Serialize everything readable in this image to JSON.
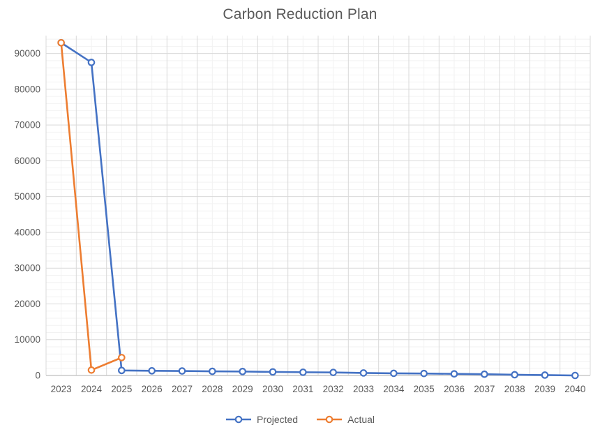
{
  "chart_data": {
    "type": "line",
    "title": "Carbon Reduction Plan",
    "categories": [
      "2023",
      "2024",
      "2025",
      "2026",
      "2027",
      "2028",
      "2029",
      "2030",
      "2031",
      "2032",
      "2033",
      "2034",
      "2035",
      "2036",
      "2037",
      "2038",
      "2039",
      "2040"
    ],
    "series": [
      {
        "name": "Projected",
        "color": "#4472C4",
        "values": [
          93000,
          87500,
          1400,
          1300,
          1250,
          1150,
          1100,
          1000,
          900,
          850,
          700,
          600,
          550,
          450,
          350,
          200,
          100,
          0
        ]
      },
      {
        "name": "Actual",
        "color": "#ED7D31",
        "values": [
          93000,
          1500,
          5000
        ]
      }
    ],
    "xlabel": "",
    "ylabel": "",
    "ylim": [
      0,
      95000
    ],
    "ytick_step": 10000,
    "ytick_labels": [
      "0",
      "10000",
      "20000",
      "30000",
      "40000",
      "50000",
      "60000",
      "70000",
      "80000",
      "90000"
    ],
    "minor_ytick_step": 2000,
    "minor_xticks": "category-centers",
    "grid": true,
    "legend_position": "bottom",
    "marker": "open-circle"
  },
  "colors": {
    "title_text": "#595959",
    "axis_text": "#595959",
    "major_gridline": "#D9D9D9",
    "minor_gridline": "#F2F2F2",
    "axis_line": "#BFBFBF",
    "background": "#FFFFFF"
  }
}
